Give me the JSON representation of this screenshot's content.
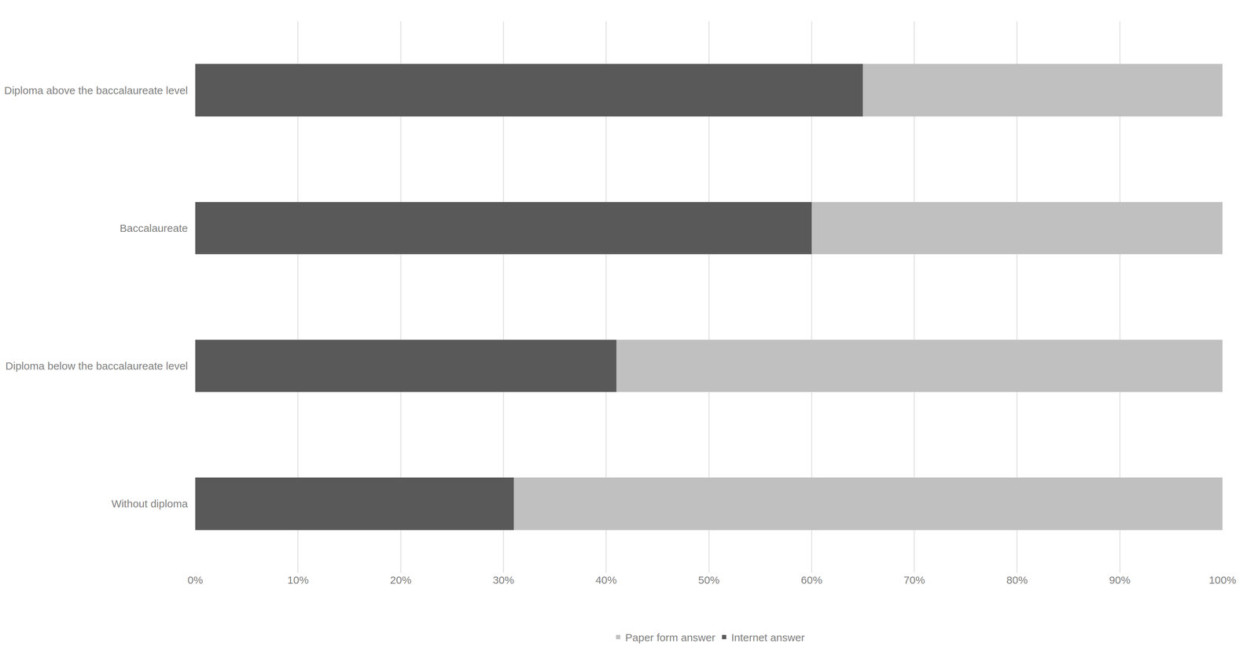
{
  "chart_data": {
    "type": "bar",
    "orientation": "horizontal",
    "stacked": true,
    "categories": [
      "Diploma above the baccalaureate level",
      "Baccalaureate",
      "Diploma below the baccalaureate level",
      "Without diploma"
    ],
    "series": [
      {
        "name": "Internet answer",
        "color": "#595959",
        "values": [
          65,
          60,
          41,
          31
        ]
      },
      {
        "name": "Paper form answer",
        "color": "#c0c0c0",
        "values": [
          35,
          40,
          59,
          69
        ]
      }
    ],
    "xlim": [
      0,
      100
    ],
    "xticks": [
      {
        "value": 0,
        "label": "0%"
      },
      {
        "value": 10,
        "label": "10%"
      },
      {
        "value": 20,
        "label": "20%"
      },
      {
        "value": 30,
        "label": "30%"
      },
      {
        "value": 40,
        "label": "40%"
      },
      {
        "value": 50,
        "label": "50%"
      },
      {
        "value": 60,
        "label": "60%"
      },
      {
        "value": 70,
        "label": "70%"
      },
      {
        "value": 80,
        "label": "80%"
      },
      {
        "value": 90,
        "label": "90%"
      },
      {
        "value": 100,
        "label": "100%"
      }
    ],
    "grid": true,
    "legend": "bottom"
  }
}
